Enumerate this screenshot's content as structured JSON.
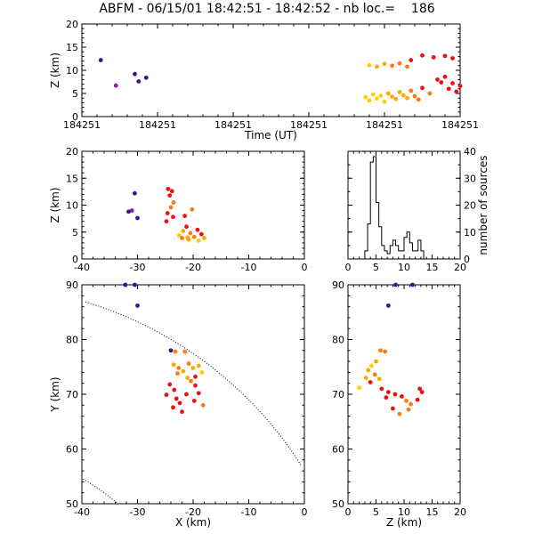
{
  "title": "ABFM - 06/15/01 18:42:51 - 18:42:52 - nb loc.=    186",
  "colors": {
    "early": "#3c0f9a",
    "mid1": "#8a1aa0",
    "red": "#ee1010",
    "orange": "#ff7a10",
    "amber": "#ffaa00",
    "yellow": "#ffd000"
  },
  "chart_data": [
    {
      "type": "scatter",
      "name_key": "time_height",
      "xlabel": "Time (UT)",
      "ylabel": "Z (km)",
      "xlim": [
        0,
        1
      ],
      "ylim": [
        0,
        20
      ],
      "xticks": [
        0,
        0.2,
        0.4,
        0.6,
        0.8,
        1.0
      ],
      "xtick_labels": [
        "184251",
        "184251",
        "184251",
        "184251",
        "184251",
        "184251"
      ],
      "yticks": [
        0,
        5,
        10,
        15,
        20
      ],
      "points": [
        [
          0.05,
          12.2,
          "early"
        ],
        [
          0.09,
          6.7,
          "mid1"
        ],
        [
          0.14,
          9.2,
          "early"
        ],
        [
          0.15,
          7.6,
          "early"
        ],
        [
          0.17,
          8.4,
          "early"
        ],
        [
          0.76,
          11.1,
          "yellow"
        ],
        [
          0.78,
          10.8,
          "amber"
        ],
        [
          0.8,
          11.4,
          "amber"
        ],
        [
          0.82,
          11.0,
          "orange"
        ],
        [
          0.84,
          11.5,
          "orange"
        ],
        [
          0.86,
          10.8,
          "orange"
        ],
        [
          0.87,
          12.2,
          "red"
        ],
        [
          0.9,
          13.2,
          "red"
        ],
        [
          0.93,
          12.8,
          "red"
        ],
        [
          0.96,
          13.1,
          "red"
        ],
        [
          0.98,
          12.6,
          "red"
        ],
        [
          0.75,
          4.2,
          "yellow"
        ],
        [
          0.76,
          3.5,
          "yellow"
        ],
        [
          0.77,
          4.8,
          "yellow"
        ],
        [
          0.78,
          3.9,
          "yellow"
        ],
        [
          0.79,
          4.5,
          "yellow"
        ],
        [
          0.8,
          3.2,
          "yellow"
        ],
        [
          0.81,
          5.0,
          "amber"
        ],
        [
          0.82,
          4.3,
          "amber"
        ],
        [
          0.83,
          3.8,
          "amber"
        ],
        [
          0.84,
          5.3,
          "amber"
        ],
        [
          0.85,
          4.6,
          "amber"
        ],
        [
          0.86,
          4.0,
          "amber"
        ],
        [
          0.87,
          5.6,
          "orange"
        ],
        [
          0.88,
          4.4,
          "orange"
        ],
        [
          0.89,
          3.7,
          "orange"
        ],
        [
          0.9,
          6.2,
          "red"
        ],
        [
          0.92,
          5.0,
          "orange"
        ],
        [
          0.94,
          8.0,
          "red"
        ],
        [
          0.95,
          7.4,
          "red"
        ],
        [
          0.96,
          8.6,
          "red"
        ],
        [
          0.97,
          6.0,
          "red"
        ],
        [
          0.98,
          7.2,
          "red"
        ],
        [
          0.99,
          5.4,
          "red"
        ],
        [
          1.0,
          6.6,
          "red"
        ]
      ]
    },
    {
      "type": "scatter",
      "name_key": "x_height",
      "xlabel": "",
      "ylabel": "Z (km)",
      "xlim": [
        -40,
        0
      ],
      "ylim": [
        0,
        20
      ],
      "xticks": [
        -40,
        -30,
        -20,
        -10,
        0
      ],
      "yticks": [
        0,
        5,
        10,
        15,
        20
      ],
      "points": [
        [
          -30.5,
          12.2,
          "early"
        ],
        [
          -31.6,
          8.8,
          "early"
        ],
        [
          -30,
          7.6,
          "early"
        ],
        [
          -31,
          9.0,
          "mid1"
        ],
        [
          -24.5,
          13.0,
          "red"
        ],
        [
          -23.8,
          12.6,
          "red"
        ],
        [
          -24.2,
          11.8,
          "red"
        ],
        [
          -23.5,
          10.5,
          "orange"
        ],
        [
          -24.0,
          9.6,
          "orange"
        ],
        [
          -24.6,
          8.5,
          "red"
        ],
        [
          -23.6,
          7.8,
          "red"
        ],
        [
          -24.8,
          7.0,
          "red"
        ],
        [
          -21.5,
          8.0,
          "red"
        ],
        [
          -20.2,
          9.2,
          "orange"
        ],
        [
          -22.5,
          4.4,
          "yellow"
        ],
        [
          -21.8,
          5.2,
          "amber"
        ],
        [
          -21.0,
          4.0,
          "amber"
        ],
        [
          -20.5,
          4.8,
          "orange"
        ],
        [
          -19.8,
          4.1,
          "orange"
        ],
        [
          -19.2,
          5.4,
          "red"
        ],
        [
          -18.5,
          4.6,
          "red"
        ],
        [
          -18.0,
          3.9,
          "amber"
        ],
        [
          -19.0,
          3.4,
          "yellow"
        ],
        [
          -20.8,
          3.6,
          "amber"
        ],
        [
          -22.0,
          3.9,
          "orange"
        ],
        [
          -21.2,
          6.0,
          "red"
        ]
      ]
    },
    {
      "type": "bar",
      "name_key": "height_histogram",
      "ylabel": "number of sources",
      "xlim": [
        0,
        20
      ],
      "ylim": [
        0,
        40
      ],
      "xticks": [
        0,
        5,
        10,
        15,
        20
      ],
      "yticks": [
        0,
        10,
        20,
        30,
        40
      ],
      "bins": [
        0,
        0.5,
        1,
        1.5,
        2,
        2.5,
        3,
        3.5,
        4,
        4.5,
        5,
        5.5,
        6,
        6.5,
        7,
        7.5,
        8,
        8.5,
        9,
        9.5,
        10,
        10.5,
        11,
        11.5,
        12,
        12.5,
        13,
        13.5,
        14,
        14.5,
        15,
        15.5,
        16,
        16.5,
        17,
        17.5,
        18,
        18.5,
        19,
        19.5
      ],
      "values": [
        0,
        0,
        0,
        0,
        0,
        0,
        3,
        13,
        36,
        38,
        21,
        12,
        5,
        3,
        2,
        5,
        7,
        5,
        3,
        3,
        8,
        10,
        6,
        3,
        3,
        7,
        3,
        0,
        0,
        0,
        0,
        0,
        0,
        0,
        0,
        0,
        0,
        0,
        0,
        0
      ]
    },
    {
      "type": "scatter",
      "name_key": "plan_view",
      "xlabel": "X (km)",
      "ylabel": "Y (km)",
      "xlim": [
        -40,
        0
      ],
      "ylim": [
        50,
        90
      ],
      "xticks": [
        -40,
        -30,
        -20,
        -10,
        0
      ],
      "yticks": [
        50,
        60,
        70,
        80,
        90
      ],
      "points": [
        [
          -32.2,
          90.0,
          "early"
        ],
        [
          -30.5,
          90.0,
          "early"
        ],
        [
          -30.0,
          86.2,
          "early"
        ],
        [
          -24.0,
          78.0,
          "early"
        ],
        [
          -23.2,
          77.8,
          "orange"
        ],
        [
          -21.5,
          77.8,
          "orange"
        ],
        [
          -23.5,
          75.4,
          "amber"
        ],
        [
          -22.6,
          74.8,
          "orange"
        ],
        [
          -21.8,
          74.2,
          "amber"
        ],
        [
          -20.8,
          75.6,
          "orange"
        ],
        [
          -20.0,
          74.8,
          "amber"
        ],
        [
          -19.0,
          75.2,
          "amber"
        ],
        [
          -18.4,
          74.0,
          "yellow"
        ],
        [
          -19.6,
          73.2,
          "red"
        ],
        [
          -22.8,
          73.8,
          "orange"
        ],
        [
          -21.0,
          73.0,
          "amber"
        ],
        [
          -24.2,
          71.8,
          "red"
        ],
        [
          -23.4,
          70.8,
          "red"
        ],
        [
          -24.8,
          69.9,
          "red"
        ],
        [
          -23.0,
          69.2,
          "red"
        ],
        [
          -22.4,
          68.4,
          "red"
        ],
        [
          -23.6,
          67.6,
          "red"
        ],
        [
          -22.0,
          66.8,
          "red"
        ],
        [
          -19.6,
          71.6,
          "red"
        ],
        [
          -19.0,
          70.2,
          "red"
        ],
        [
          -19.8,
          68.8,
          "red"
        ],
        [
          -18.2,
          68.0,
          "orange"
        ],
        [
          -20.4,
          72.4,
          "orange"
        ],
        [
          -21.2,
          70.0,
          "red"
        ]
      ]
    },
    {
      "type": "scatter",
      "name_key": "z_plan",
      "xlabel": "Z (km)",
      "ylabel": "",
      "xlim": [
        0,
        20
      ],
      "ylim": [
        50,
        90
      ],
      "xticks": [
        0,
        5,
        10,
        15,
        20
      ],
      "yticks": [
        50,
        60,
        70,
        80,
        90
      ],
      "points": [
        [
          8.5,
          90.0,
          "early"
        ],
        [
          11.5,
          90.0,
          "early"
        ],
        [
          7.2,
          86.2,
          "early"
        ],
        [
          5.8,
          78.0,
          "orange"
        ],
        [
          6.6,
          77.8,
          "orange"
        ],
        [
          5.0,
          76.0,
          "amber"
        ],
        [
          4.2,
          75.2,
          "yellow"
        ],
        [
          3.6,
          74.4,
          "amber"
        ],
        [
          4.8,
          73.6,
          "orange"
        ],
        [
          3.2,
          73.0,
          "amber"
        ],
        [
          4.0,
          72.2,
          "red"
        ],
        [
          2.0,
          71.2,
          "yellow"
        ],
        [
          5.6,
          72.8,
          "amber"
        ],
        [
          6.0,
          71.0,
          "red"
        ],
        [
          7.2,
          70.4,
          "red"
        ],
        [
          8.4,
          70.0,
          "red"
        ],
        [
          9.6,
          69.6,
          "red"
        ],
        [
          10.4,
          68.8,
          "orange"
        ],
        [
          11.2,
          68.2,
          "orange"
        ],
        [
          12.4,
          69.0,
          "red"
        ],
        [
          13.2,
          70.4,
          "red"
        ],
        [
          12.8,
          71.0,
          "red"
        ],
        [
          9.2,
          66.4,
          "orange"
        ],
        [
          8.0,
          67.4,
          "red"
        ],
        [
          10.8,
          67.2,
          "orange"
        ],
        [
          6.8,
          69.4,
          "red"
        ]
      ]
    }
  ]
}
